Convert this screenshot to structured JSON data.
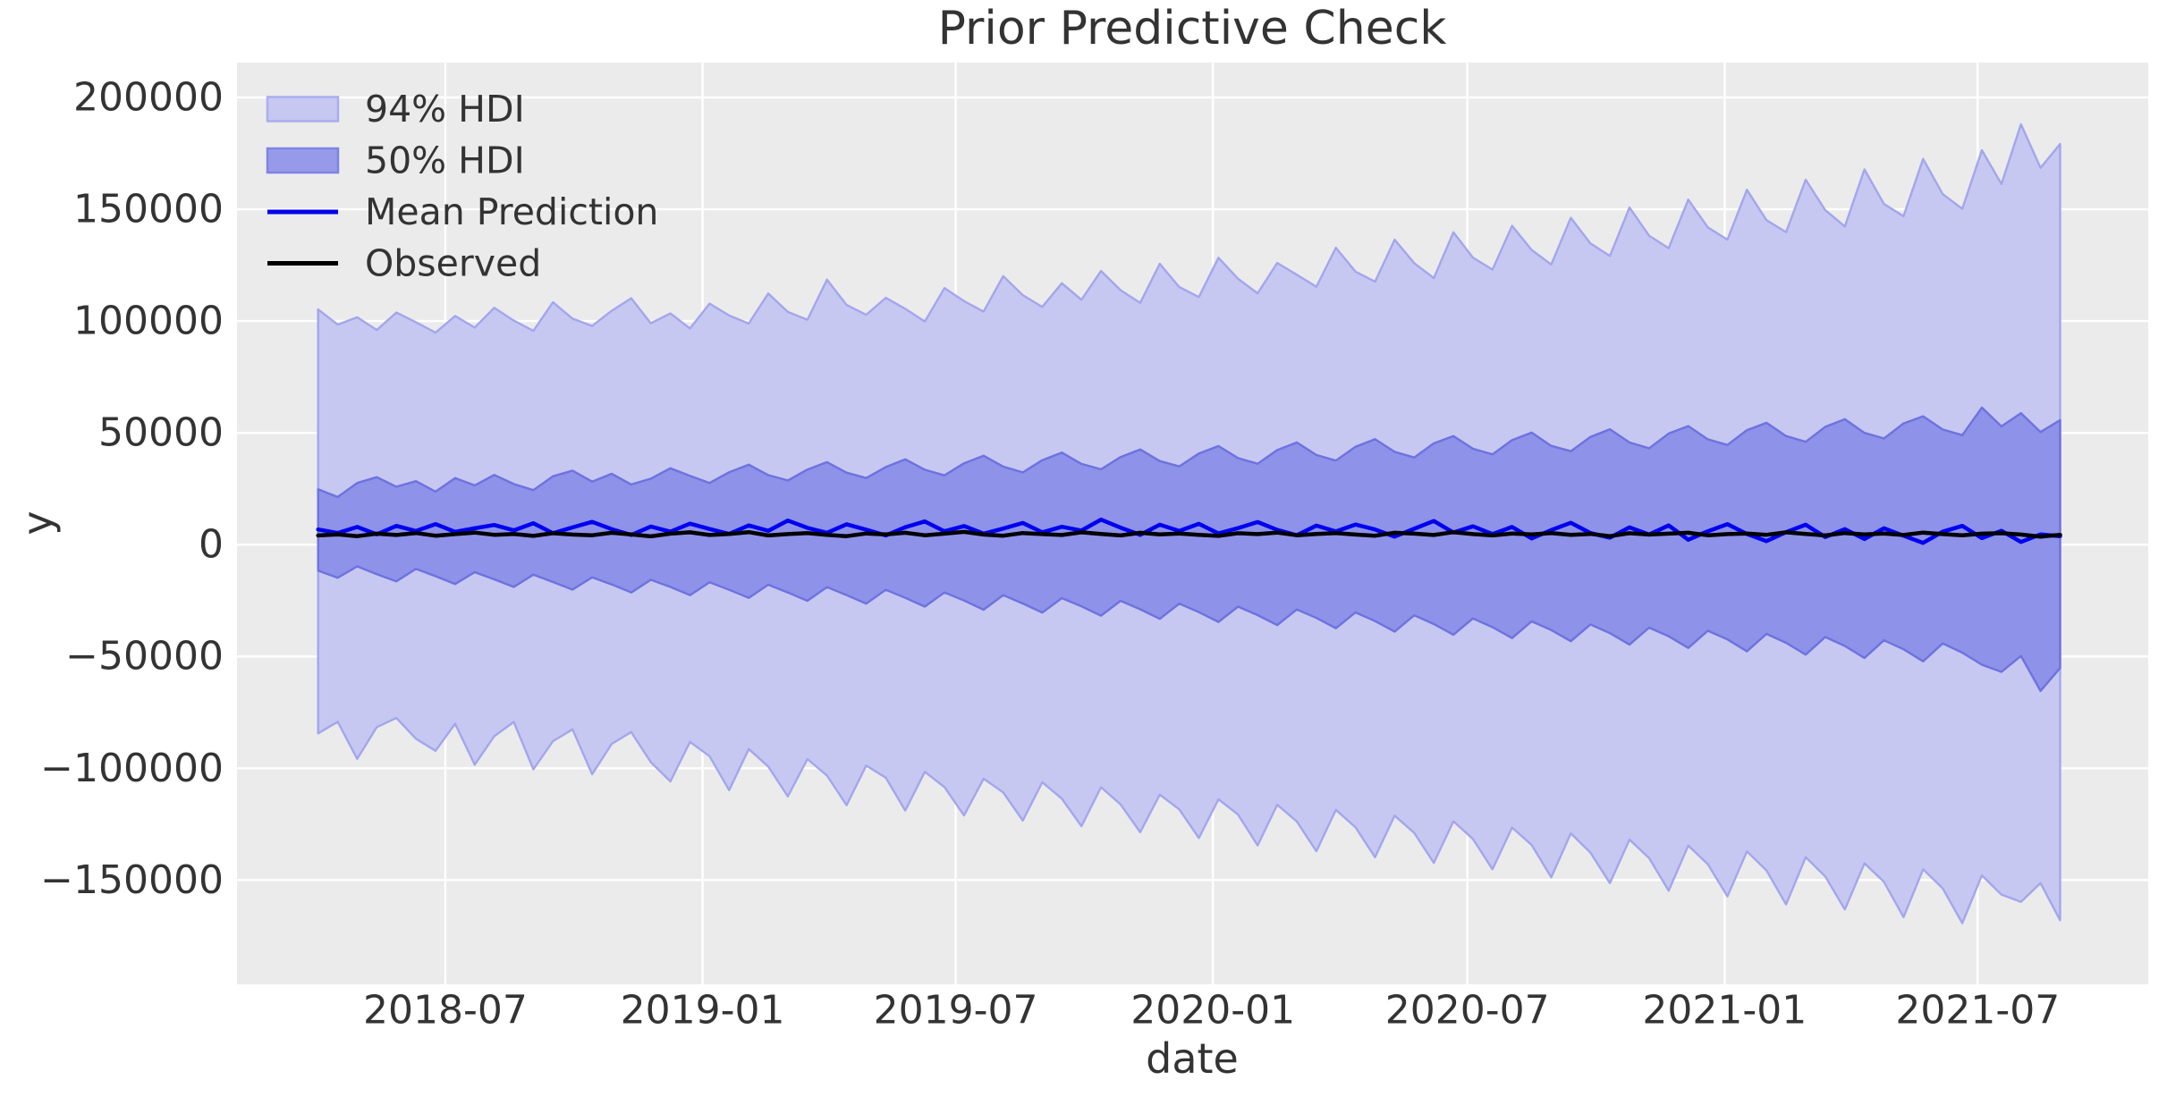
{
  "title": "Prior Predictive Check",
  "legend": {
    "items": [
      {
        "label": "94% HDI",
        "type": "patch",
        "fill": "#c6c8f1",
        "edge": "#aaadee"
      },
      {
        "label": "50% HDI",
        "type": "patch",
        "fill": "#969ae9",
        "edge": "#7e83e4"
      },
      {
        "label": "Mean Prediction",
        "type": "line",
        "color": "#0000f0"
      },
      {
        "label": "Observed",
        "type": "line",
        "color": "#000000"
      }
    ]
  },
  "chart_data": {
    "type": "line",
    "title": "Prior Predictive Check",
    "xlabel": "date",
    "ylabel": "y",
    "grid": true,
    "legend_position": "upper-left",
    "plot_bg": "#ebebeb",
    "grid_color": "#ffffff",
    "xlim": [
      "2018-02-02",
      "2021-10-31"
    ],
    "ylim": [
      -196650,
      215600
    ],
    "x_ticks": [
      "2018-07-01",
      "2019-01-01",
      "2019-07-01",
      "2020-01-01",
      "2020-07-01",
      "2021-01-01",
      "2021-07-01"
    ],
    "x_tick_labels": [
      "2018-07",
      "2019-01",
      "2019-07",
      "2020-01",
      "2020-07",
      "2021-01",
      "2021-07"
    ],
    "y_ticks": [
      200000,
      150000,
      100000,
      50000,
      0,
      -50000,
      -100000,
      -150000
    ],
    "y_tick_labels": [
      "200000",
      "150000",
      "100000",
      "50000",
      "0",
      "−50000",
      "−100000",
      "−150000"
    ],
    "x_start": "2018-04-01",
    "x_step_days": 14,
    "n_points": 90,
    "bands": [
      {
        "name": "94% HDI",
        "fill": "#c6c8f1",
        "edge": "#a3a6ec",
        "upper": "hdi94_upper",
        "lower": "hdi94_lower"
      },
      {
        "name": "50% HDI",
        "fill": "#8e92e8",
        "edge": "#6d72e0",
        "upper": "hdi50_upper",
        "lower": "hdi50_lower"
      }
    ],
    "lines": [
      {
        "name": "Mean Prediction",
        "color": "#0000f0",
        "width": 4.5,
        "values": "mean"
      },
      {
        "name": "Observed",
        "color": "#000000",
        "width": 4.5,
        "values": "observed"
      }
    ],
    "series": {
      "hdi94_upper": [
        105200,
        98400,
        101700,
        96000,
        103800,
        99500,
        94800,
        102300,
        97100,
        105900,
        100200,
        95600,
        108400,
        101100,
        97800,
        104600,
        110200,
        99000,
        103400,
        96700,
        107800,
        102500,
        98900,
        112300,
        104100,
        100600,
        118500,
        107200,
        102800,
        110400,
        105500,
        99800,
        114700,
        108900,
        104200,
        120100,
        111600,
        106300,
        116900,
        109500,
        122400,
        113800,
        108100,
        125600,
        115200,
        110700,
        128300,
        118900,
        112400,
        126000,
        120700,
        115300,
        132800,
        122100,
        117600,
        136400,
        125900,
        119200,
        139700,
        128400,
        123000,
        142600,
        131800,
        125300,
        146200,
        134700,
        129100,
        150800,
        138200,
        132600,
        154300,
        141900,
        136400,
        158700,
        145100,
        139800,
        163200,
        149600,
        142300,
        167800,
        152400,
        146900,
        172500,
        156800,
        150200,
        176400,
        161300,
        188000,
        168500,
        179200
      ],
      "hdi94_lower": [
        -84400,
        -79200,
        -95800,
        -81600,
        -77500,
        -86800,
        -92200,
        -80100,
        -98400,
        -85700,
        -79300,
        -100500,
        -87900,
        -82600,
        -102700,
        -89100,
        -83800,
        -97300,
        -105900,
        -88200,
        -94600,
        -109800,
        -91400,
        -99200,
        -112600,
        -95900,
        -103300,
        -116500,
        -98800,
        -104200,
        -118900,
        -101600,
        -108400,
        -121100,
        -104700,
        -110800,
        -123400,
        -106300,
        -113600,
        -125900,
        -108500,
        -116200,
        -128600,
        -111800,
        -118400,
        -131200,
        -113900,
        -120700,
        -134500,
        -116300,
        -123800,
        -137100,
        -118600,
        -126400,
        -139800,
        -121200,
        -128900,
        -142300,
        -123700,
        -131600,
        -145200,
        -126500,
        -134300,
        -148800,
        -129100,
        -137700,
        -151400,
        -131900,
        -140200,
        -154800,
        -134600,
        -142900,
        -157300,
        -137200,
        -145700,
        -160900,
        -139800,
        -148400,
        -163200,
        -142500,
        -150800,
        -166600,
        -145200,
        -153700,
        -169300,
        -147900,
        -156500,
        -159800,
        -151400,
        -168000
      ],
      "hdi50_upper": [
        24800,
        21300,
        27600,
        30200,
        25900,
        28400,
        23700,
        29800,
        26500,
        31200,
        27100,
        24400,
        30600,
        33100,
        28200,
        31700,
        26900,
        29500,
        34200,
        30800,
        27600,
        32400,
        35800,
        31100,
        28700,
        33600,
        36900,
        32200,
        29800,
        34700,
        38200,
        33500,
        31000,
        36400,
        39800,
        34900,
        32300,
        37800,
        41200,
        36100,
        33700,
        39200,
        42600,
        37400,
        35000,
        40800,
        44100,
        38700,
        36200,
        42300,
        45700,
        40100,
        37600,
        43800,
        47200,
        41500,
        39000,
        45300,
        48600,
        42900,
        40400,
        46800,
        50100,
        44200,
        41800,
        48200,
        51600,
        45700,
        43100,
        49700,
        53000,
        47100,
        44600,
        51200,
        54500,
        48600,
        46000,
        52700,
        56100,
        50000,
        47500,
        54200,
        57400,
        51500,
        49000,
        61300,
        52900,
        58800,
        50400,
        55700
      ],
      "hdi50_lower": [
        -11600,
        -14800,
        -9700,
        -13200,
        -16400,
        -10800,
        -14100,
        -17600,
        -12300,
        -15500,
        -18900,
        -13400,
        -16700,
        -20100,
        -14600,
        -17800,
        -21400,
        -15700,
        -18900,
        -22600,
        -16800,
        -20200,
        -23800,
        -17900,
        -21400,
        -25100,
        -19000,
        -22600,
        -26400,
        -20200,
        -23800,
        -27700,
        -21400,
        -25000,
        -29100,
        -22600,
        -26300,
        -30400,
        -23900,
        -27600,
        -31800,
        -25100,
        -28900,
        -33200,
        -26400,
        -30200,
        -34600,
        -27700,
        -31500,
        -36000,
        -29000,
        -32800,
        -37400,
        -30300,
        -34200,
        -38900,
        -31600,
        -35500,
        -40300,
        -33000,
        -36900,
        -41800,
        -34300,
        -38200,
        -43200,
        -35700,
        -39600,
        -44700,
        -37100,
        -41000,
        -46200,
        -38500,
        -42400,
        -47700,
        -39900,
        -43900,
        -49200,
        -41300,
        -45300,
        -50700,
        -42800,
        -46800,
        -52200,
        -44200,
        -48300,
        -53700,
        -56900,
        -49800,
        -65400,
        -55200
      ],
      "mean": [
        6800,
        5200,
        7900,
        4600,
        8400,
        6100,
        9200,
        5700,
        7300,
        8800,
        6400,
        9600,
        5100,
        7700,
        10200,
        6900,
        4300,
        8100,
        5800,
        9400,
        7000,
        4800,
        8600,
        6200,
        10800,
        7500,
        5300,
        9100,
        6700,
        4100,
        7800,
        10400,
        6000,
        8300,
        4900,
        7200,
        9700,
        5500,
        8000,
        6300,
        11200,
        7600,
        4400,
        8900,
        6100,
        9300,
        5000,
        7400,
        10100,
        6600,
        4200,
        8500,
        5900,
        9000,
        6800,
        3600,
        7100,
        10600,
        5400,
        8200,
        4700,
        7900,
        2800,
        6500,
        9800,
        5200,
        3100,
        7700,
        4500,
        8600,
        2200,
        6000,
        9200,
        4800,
        1600,
        5600,
        8900,
        3400,
        6900,
        2500,
        7300,
        4000,
        800,
        5800,
        8400,
        2900,
        6200,
        1200,
        4600,
        3800
      ],
      "observed": [
        4100,
        4600,
        3800,
        4900,
        4300,
        5200,
        4000,
        4700,
        5400,
        4400,
        4800,
        3900,
        5100,
        4500,
        4200,
        5300,
        4600,
        3700,
        4900,
        5500,
        4300,
        4800,
        5600,
        4100,
        4700,
        5200,
        4400,
        3800,
        5000,
        4600,
        5300,
        4200,
        4900,
        5700,
        4500,
        4000,
        5200,
        4700,
        4300,
        5500,
        4800,
        4100,
        5300,
        4600,
        5000,
        4400,
        3900,
        5100,
        4700,
        5400,
        4200,
        4800,
        5200,
        4500,
        4000,
        5300,
        4900,
        4300,
        5600,
        4700,
        4100,
        5000,
        4600,
        5200,
        4400,
        4800,
        3800,
        5100,
        4500,
        4900,
        5300,
        4200,
        4700,
        5000,
        4400,
        5500,
        4800,
        4100,
        5200,
        4600,
        5000,
        4300,
        5400,
        4700,
        4200,
        4900,
        5100,
        4500,
        3600,
        4400
      ]
    }
  }
}
